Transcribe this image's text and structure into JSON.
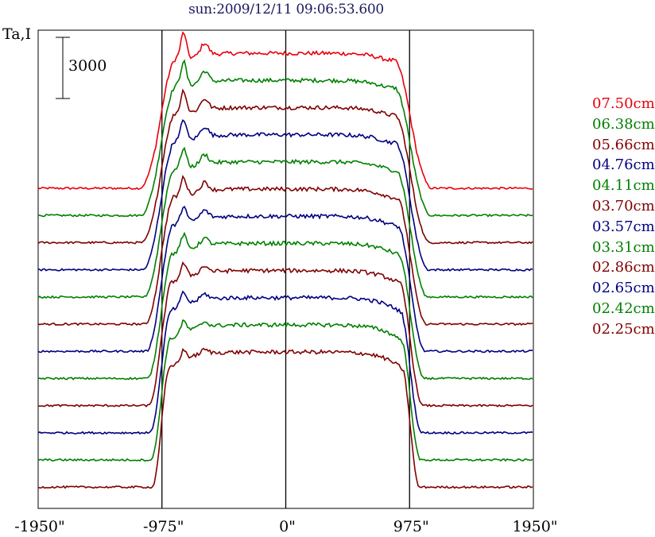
{
  "chart_data": {
    "type": "line",
    "title": "sun:2009/12/11 09:06:53.600",
    "ylabel": "Ta,I",
    "xlabel": "",
    "x_range": [
      -1950,
      1950
    ],
    "x_unit": "arcsec",
    "grid": false,
    "x_ticks": [
      {
        "value": -1950,
        "label": "-1950\""
      },
      {
        "value": -975,
        "label": "-975\""
      },
      {
        "value": 0,
        "label": "0\""
      },
      {
        "value": 975,
        "label": "975\""
      },
      {
        "value": 1950,
        "label": "1950\""
      }
    ],
    "vertical_lines": [
      -975,
      0,
      975
    ],
    "scale_bar": {
      "value": 3000,
      "label": "3000"
    },
    "legend_position": "right",
    "series": [
      {
        "name": "07.50cm",
        "color": "#e8000b"
      },
      {
        "name": "06.38cm",
        "color": "#008000"
      },
      {
        "name": "05.66cm",
        "color": "#800000"
      },
      {
        "name": "04.76cm",
        "color": "#000080"
      },
      {
        "name": "04.11cm",
        "color": "#008000"
      },
      {
        "name": "03.70cm",
        "color": "#800000"
      },
      {
        "name": "03.57cm",
        "color": "#000080"
      },
      {
        "name": "03.31cm",
        "color": "#008000"
      },
      {
        "name": "02.86cm",
        "color": "#800000"
      },
      {
        "name": "02.65cm",
        "color": "#000080"
      },
      {
        "name": "02.42cm",
        "color": "#008000"
      },
      {
        "name": "02.25cm",
        "color": "#800000"
      }
    ]
  }
}
